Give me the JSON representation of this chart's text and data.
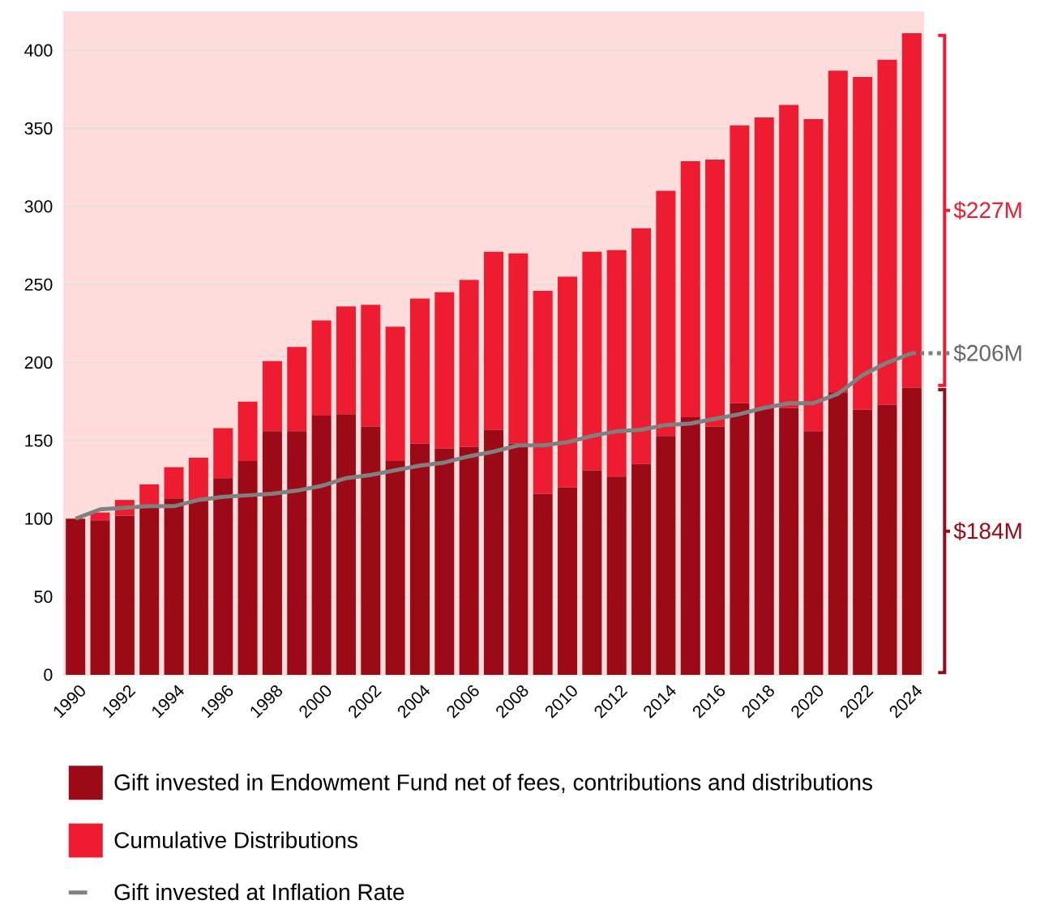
{
  "chart_data": {
    "type": "bar",
    "stacked": true,
    "categories": [
      "1990",
      null,
      "1992",
      null,
      "1994",
      null,
      "1996",
      null,
      "1998",
      null,
      "2000",
      null,
      "2002",
      null,
      "2004",
      null,
      "2006",
      null,
      "2008",
      null,
      "2010",
      null,
      "2012",
      null,
      "2014",
      null,
      "2016",
      null,
      "2018",
      null,
      "2020",
      null,
      "2022",
      null,
      "2024"
    ],
    "series": [
      {
        "name": "Gift invested in Endowment Fund net of fees, contributions and distributions",
        "color": "#9c0a17",
        "values": [
          100,
          99,
          102,
          107,
          113,
          111,
          126,
          137,
          156,
          156,
          166,
          167,
          159,
          137,
          148,
          145,
          146,
          157,
          148,
          116,
          120,
          131,
          127,
          135,
          153,
          165,
          159,
          174,
          171,
          171,
          156,
          181,
          170,
          173,
          184
        ]
      },
      {
        "name": "Cumulative Distributions",
        "color": "#ed1c31",
        "values": [
          0,
          5,
          10,
          15,
          20,
          28,
          32,
          38,
          45,
          54,
          61,
          69,
          78,
          86,
          93,
          100,
          107,
          114,
          122,
          130,
          135,
          140,
          145,
          151,
          157,
          164,
          171,
          178,
          186,
          194,
          200,
          206,
          213,
          221,
          227
        ]
      },
      {
        "name": "Gift invested at Inflation Rate",
        "type": "line",
        "color": "#808080",
        "values": [
          100,
          106,
          107,
          108,
          108,
          112,
          114,
          115,
          116,
          118,
          121,
          126,
          128,
          131,
          134,
          136,
          140,
          143,
          147,
          147,
          149,
          153,
          156,
          157,
          160,
          161,
          164,
          167,
          171,
          174,
          174,
          180,
          192,
          200,
          206
        ]
      }
    ],
    "ylim": [
      0,
      425
    ],
    "yticks": [
      0,
      50,
      100,
      150,
      200,
      250,
      300,
      350,
      400
    ],
    "grid": "y",
    "legend": "bottom",
    "line_style": "solid",
    "annotations": [
      "$227M",
      "$206M",
      "$184M"
    ]
  }
}
